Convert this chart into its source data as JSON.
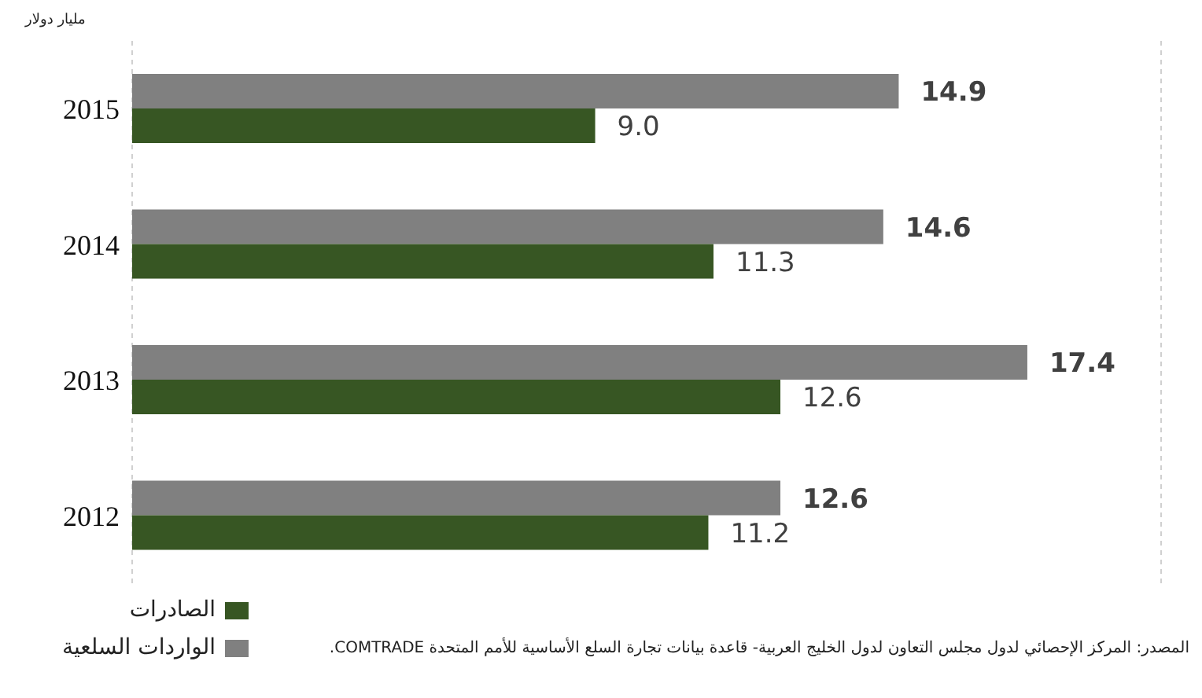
{
  "chart_data": {
    "type": "bar",
    "orientation": "horizontal",
    "categories": [
      "2015",
      "2014",
      "2013",
      "2012"
    ],
    "series": [
      {
        "name": "الواردات السلعية",
        "color": "#808080",
        "values": [
          14.9,
          14.6,
          17.4,
          12.6
        ],
        "value_labels": [
          "14.9",
          "14.6",
          "17.4",
          "12.6"
        ]
      },
      {
        "name": "الصادرات",
        "color": "#375623",
        "values": [
          9.0,
          11.3,
          12.6,
          11.2
        ],
        "value_labels": [
          "9.0",
          "11.3",
          "12.6",
          "11.2"
        ]
      }
    ],
    "xlim": [
      0,
      20
    ],
    "tick_labels": "y",
    "grid": "x",
    "legend": "bottom left",
    "annotations": [
      "مليار دولار",
      "المصدر: المركز الإحصائي لدول مجلس التعاون لدول الخليج العربية- قاعدة بيانات تجارة السلع الأساسية للأمم المتحدة COMTRADE."
    ]
  }
}
